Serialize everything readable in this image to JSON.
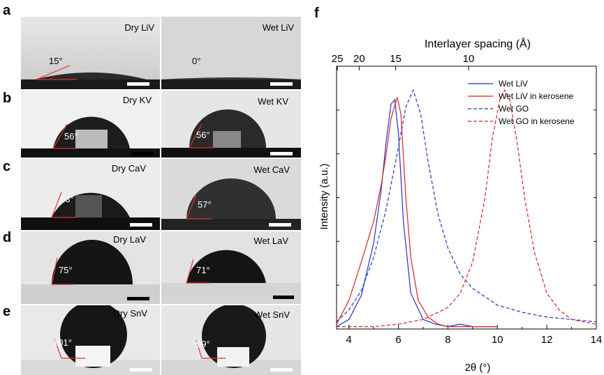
{
  "panel_letters": {
    "a": "a",
    "b": "b",
    "c": "c",
    "d": "d",
    "e": "e",
    "f": "f"
  },
  "photo_panels": [
    {
      "letter": "a",
      "left": {
        "caption": "Dry LiV",
        "angle": "15°"
      },
      "right": {
        "caption": "Wet LiV",
        "angle": "0°"
      }
    },
    {
      "letter": "b",
      "left": {
        "caption": "Dry KV",
        "angle": "56°"
      },
      "right": {
        "caption": "Wet KV",
        "angle": "56°"
      }
    },
    {
      "letter": "c",
      "left": {
        "caption": "Dry CaV",
        "angle": "63°"
      },
      "right": {
        "caption": "Wet CaV",
        "angle": "57°"
      }
    },
    {
      "letter": "d",
      "left": {
        "caption": "Dry LaV",
        "angle": "75°"
      },
      "right": {
        "caption": "Wet LaV",
        "angle": "71°"
      }
    },
    {
      "letter": "e",
      "left": {
        "caption": "Dry SnV",
        "angle": "101°"
      },
      "right": {
        "caption": "Wet SnV",
        "angle": "99°"
      }
    }
  ],
  "chart_data": {
    "type": "line",
    "xlabel": "2θ (°)",
    "ylabel": "Intensity (a.u.)",
    "top_axis_label": "Interlayer spacing (Å)",
    "xlim": [
      3.5,
      14
    ],
    "ylim": [
      0,
      1.1
    ],
    "x_ticks": [
      4,
      6,
      8,
      10,
      12,
      14
    ],
    "top_ticks": [
      25,
      20,
      15,
      10
    ],
    "legend_position": "top-right",
    "series": [
      {
        "name": "Wet LiV",
        "color": "#2233cc",
        "dash": "solid",
        "x": [
          3.5,
          4.0,
          4.5,
          5.0,
          5.3,
          5.5,
          5.7,
          5.85,
          6.0,
          6.2,
          6.5,
          7.0,
          7.5,
          8.0,
          8.5,
          9.0,
          10.0
        ],
        "y": [
          0.01,
          0.04,
          0.14,
          0.36,
          0.58,
          0.78,
          0.94,
          0.96,
          0.82,
          0.45,
          0.15,
          0.04,
          0.02,
          0.01,
          0.02,
          0.01,
          0.01
        ]
      },
      {
        "name": "Wet LiV in kerosene",
        "color": "#dd1f1f",
        "dash": "solid",
        "x": [
          3.5,
          4.0,
          4.5,
          5.0,
          5.3,
          5.5,
          5.7,
          5.95,
          6.1,
          6.3,
          6.5,
          6.8,
          7.2,
          7.6,
          8.0,
          9.0,
          10.0
        ],
        "y": [
          0.02,
          0.12,
          0.28,
          0.45,
          0.6,
          0.73,
          0.88,
          0.97,
          0.9,
          0.55,
          0.3,
          0.12,
          0.05,
          0.02,
          0.01,
          0.01,
          0.01
        ]
      },
      {
        "name": "Wet GO",
        "color": "#2233cc",
        "dash": "dashed",
        "x": [
          3.5,
          4.0,
          4.5,
          5.0,
          5.5,
          6.0,
          6.3,
          6.6,
          6.9,
          7.2,
          7.6,
          8.0,
          8.5,
          9.0,
          10.0,
          11.0,
          12.0,
          13.0,
          14.0
        ],
        "y": [
          0.03,
          0.08,
          0.16,
          0.3,
          0.5,
          0.76,
          0.93,
          1.0,
          0.9,
          0.7,
          0.48,
          0.34,
          0.23,
          0.17,
          0.1,
          0.07,
          0.05,
          0.04,
          0.03
        ]
      },
      {
        "name": "Wet GO in kerosene",
        "color": "#dd1f1f",
        "dash": "dashed",
        "x": [
          3.5,
          5.0,
          6.0,
          7.0,
          8.0,
          8.5,
          9.0,
          9.5,
          9.8,
          10.1,
          10.3,
          10.5,
          10.8,
          11.1,
          11.5,
          12.0,
          12.5,
          13.0,
          14.0
        ],
        "y": [
          0.01,
          0.01,
          0.02,
          0.04,
          0.09,
          0.15,
          0.28,
          0.55,
          0.8,
          0.96,
          1.0,
          0.96,
          0.78,
          0.55,
          0.32,
          0.15,
          0.08,
          0.04,
          0.02
        ]
      }
    ]
  }
}
